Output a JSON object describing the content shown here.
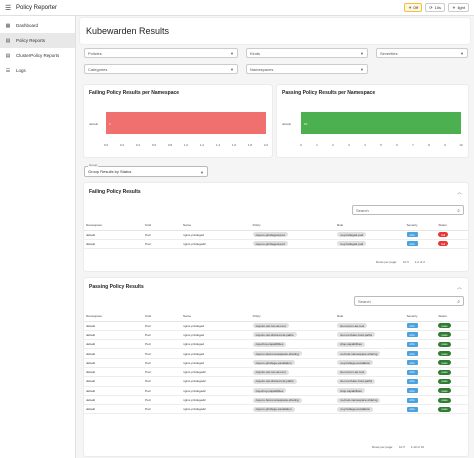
{
  "app": {
    "title": "Policy Reporter",
    "menu_icon": "hamburger-icon"
  },
  "appbar": {
    "chip_warn": "☀ Off",
    "chip_interval": "10s",
    "chip_theme": "light"
  },
  "sidebar": {
    "items": [
      {
        "label": "Dashboard",
        "icon": "grid-icon"
      },
      {
        "label": "Policy Reports",
        "icon": "document-icon"
      },
      {
        "label": "ClusterPolicy Reports",
        "icon": "document-icon"
      },
      {
        "label": "Logs",
        "icon": "list-icon"
      }
    ]
  },
  "page": {
    "title": "Kubewarden Results"
  },
  "filters": {
    "policies": "Policies",
    "kinds": "Kinds",
    "severities": "Severities",
    "categories": "Categories",
    "namespaces": "Namespaces"
  },
  "failing_chart": {
    "title": "Failing Policy Results per Namespace",
    "namespace": "default",
    "value_label": "2",
    "ticks": [
      "0.0",
      "0.2",
      "0.4",
      "0.6",
      "0.8",
      "1.0",
      "1.2",
      "1.4",
      "1.6",
      "1.8",
      "2.0"
    ],
    "color": "#f07070"
  },
  "passing_chart": {
    "title": "Passing Policy Results per Namespace",
    "namespace": "default",
    "value_label": "10",
    "ticks": [
      "0",
      "1",
      "2",
      "3",
      "4",
      "5",
      "6",
      "7",
      "8",
      "9",
      "10"
    ],
    "color": "#4caf50"
  },
  "chart_data": [
    {
      "type": "bar",
      "title": "Failing Policy Results per Namespace",
      "categories": [
        "default"
      ],
      "values": [
        2
      ],
      "xlim": [
        0,
        2
      ]
    },
    {
      "type": "bar",
      "title": "Passing Policy Results per Namespace",
      "categories": [
        "default"
      ],
      "values": [
        10
      ],
      "xlim": [
        0,
        10
      ]
    }
  ],
  "group": {
    "label": "Group",
    "value": "Group Results by Status"
  },
  "failing": {
    "title": "Failing Policy Results",
    "search_placeholder": "Search",
    "headers": [
      "Namespace",
      "Kind",
      "Name",
      "Policy",
      "Rule",
      "Severity",
      "Status"
    ],
    "rows": [
      [
        "default",
        "Pod",
        "nginx-privileged",
        "cap-no-privileged-pod",
        "no-privileged-pod",
        "info",
        "fail"
      ],
      [
        "default",
        "Pod",
        "nginx-privileged2",
        "cap-no-privileged-pod",
        "no-privileged-pod",
        "info",
        "fail"
      ]
    ],
    "rows_per_page_label": "Rows per page:",
    "rows_per_page": "10",
    "range": "1-2 of 2"
  },
  "passing": {
    "title": "Passing Policy Results",
    "search_placeholder": "Search",
    "headers": [
      "Namespace",
      "Kind",
      "Name",
      "Policy",
      "Rule",
      "Severity",
      "Status"
    ],
    "rows": [
      [
        "default",
        "Pod",
        "nginx-privileged",
        "cap-do-not-run-as-root",
        "do-not-run-as-root",
        "info",
        "pass"
      ],
      [
        "default",
        "Pod",
        "nginx-privileged",
        "cap-do-not-share-host-paths",
        "do-not-share-host-paths",
        "info",
        "pass"
      ],
      [
        "default",
        "Pod",
        "nginx-privileged",
        "cap-drop-capabilities",
        "drop-capabilities",
        "info",
        "pass"
      ],
      [
        "default",
        "Pod",
        "nginx-privileged",
        "cap-no-host-namespace-sharing",
        "no-host-namespace-sharing",
        "info",
        "pass"
      ],
      [
        "default",
        "Pod",
        "nginx-privileged",
        "cap-no-privilege-escalation",
        "no-privilege-escalation",
        "info",
        "pass"
      ],
      [
        "default",
        "Pod",
        "nginx-privileged2",
        "cap-do-not-run-as-root",
        "do-not-run-as-root",
        "info",
        "pass"
      ],
      [
        "default",
        "Pod",
        "nginx-privileged2",
        "cap-do-not-share-host-paths",
        "do-not-share-host-paths",
        "info",
        "pass"
      ],
      [
        "default",
        "Pod",
        "nginx-privileged2",
        "cap-drop-capabilities",
        "drop-capabilities",
        "info",
        "pass"
      ],
      [
        "default",
        "Pod",
        "nginx-privileged2",
        "cap-no-host-namespace-sharing",
        "no-host-namespace-sharing",
        "info",
        "pass"
      ],
      [
        "default",
        "Pod",
        "nginx-privileged2",
        "cap-no-privilege-escalation",
        "no-privilege-escalation",
        "info",
        "pass"
      ]
    ],
    "rows_per_page_label": "Rows per page:",
    "rows_per_page": "10",
    "range": "1-10 of 10"
  }
}
